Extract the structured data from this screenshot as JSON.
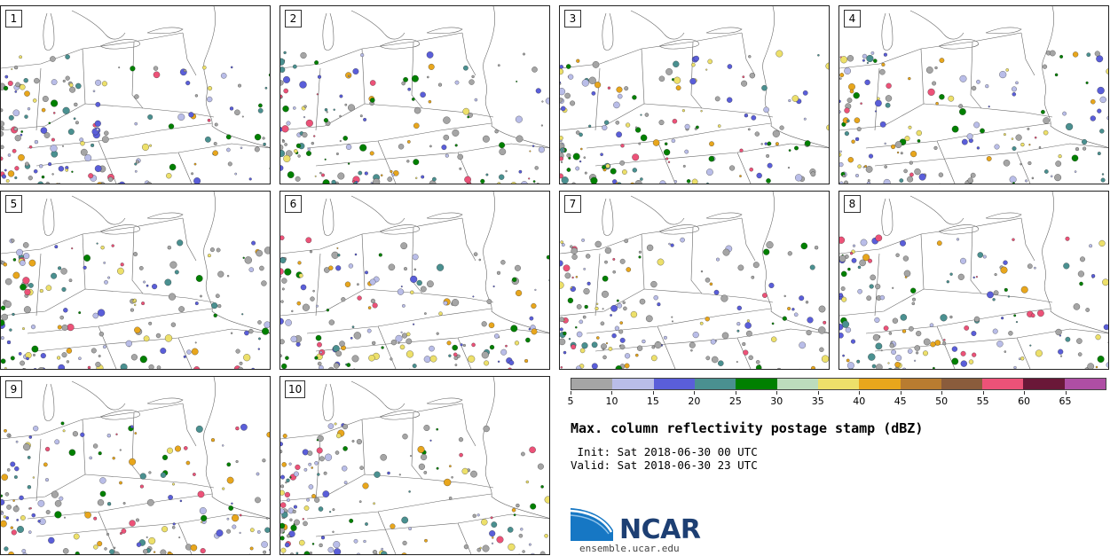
{
  "stamps": [
    "1",
    "2",
    "3",
    "4",
    "5",
    "6",
    "7",
    "8",
    "9",
    "10"
  ],
  "colorbar": {
    "ticks": [
      "5",
      "10",
      "15",
      "20",
      "25",
      "30",
      "35",
      "40",
      "45",
      "50",
      "55",
      "60",
      "65"
    ],
    "colors": [
      "#a5a5a5",
      "#b9bde8",
      "#5a5ed9",
      "#4a9090",
      "#008000",
      "#bcdcbc",
      "#ede06a",
      "#e8a61c",
      "#b87c30",
      "#8a5c3c",
      "#ec5278",
      "#6a1838",
      "#ae4ea4"
    ]
  },
  "title": "Max. column reflectivity postage stamp (dBZ)",
  "init": " Init: Sat 2018-06-30 00 UTC",
  "valid": "Valid: Sat 2018-06-30 23 UTC",
  "logo_text": "NCAR",
  "site": "ensemble.ucar.edu"
}
